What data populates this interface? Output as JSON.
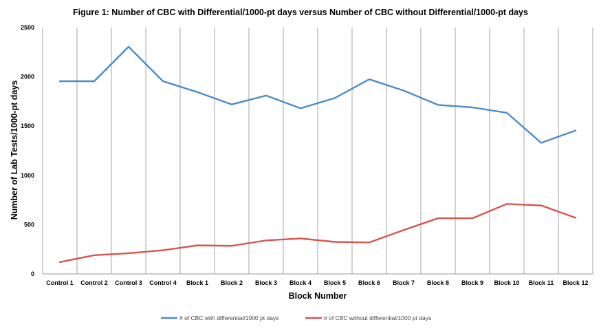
{
  "chart_data": {
    "type": "line",
    "title": "Figure 1: Number of CBC with Differential/1000-pt days versus Number of CBC without Differential/1000-pt days",
    "xlabel": "Block Number",
    "ylabel": "Number of Lab Tests/1000-pt days",
    "categories": [
      "Control 1",
      "Control 2",
      "Control 3",
      "Control 4",
      "Block 1",
      "Block 2",
      "Block 3",
      "Block 4",
      "Block 5",
      "Block 6",
      "Block 7",
      "Block 8",
      "Block 9",
      "Block 10",
      "Block 11",
      "Block 12"
    ],
    "ylim": [
      0,
      2500
    ],
    "yticks": [
      0,
      500,
      1000,
      1500,
      2000,
      2500
    ],
    "grid": "vertical",
    "legend_position": "bottom",
    "series": [
      {
        "name": "# of CBC with differential/1000 pt days",
        "color": "#4a8bc9",
        "values": [
          1955,
          1955,
          2305,
          1955,
          1845,
          1720,
          1810,
          1680,
          1785,
          1975,
          1860,
          1715,
          1690,
          1635,
          1330,
          1455
        ]
      },
      {
        "name": "# of CBC without differential/1000 pt days",
        "color": "#d9534f",
        "values": [
          120,
          190,
          210,
          240,
          290,
          285,
          340,
          360,
          325,
          320,
          445,
          565,
          565,
          710,
          695,
          570
        ]
      }
    ]
  }
}
